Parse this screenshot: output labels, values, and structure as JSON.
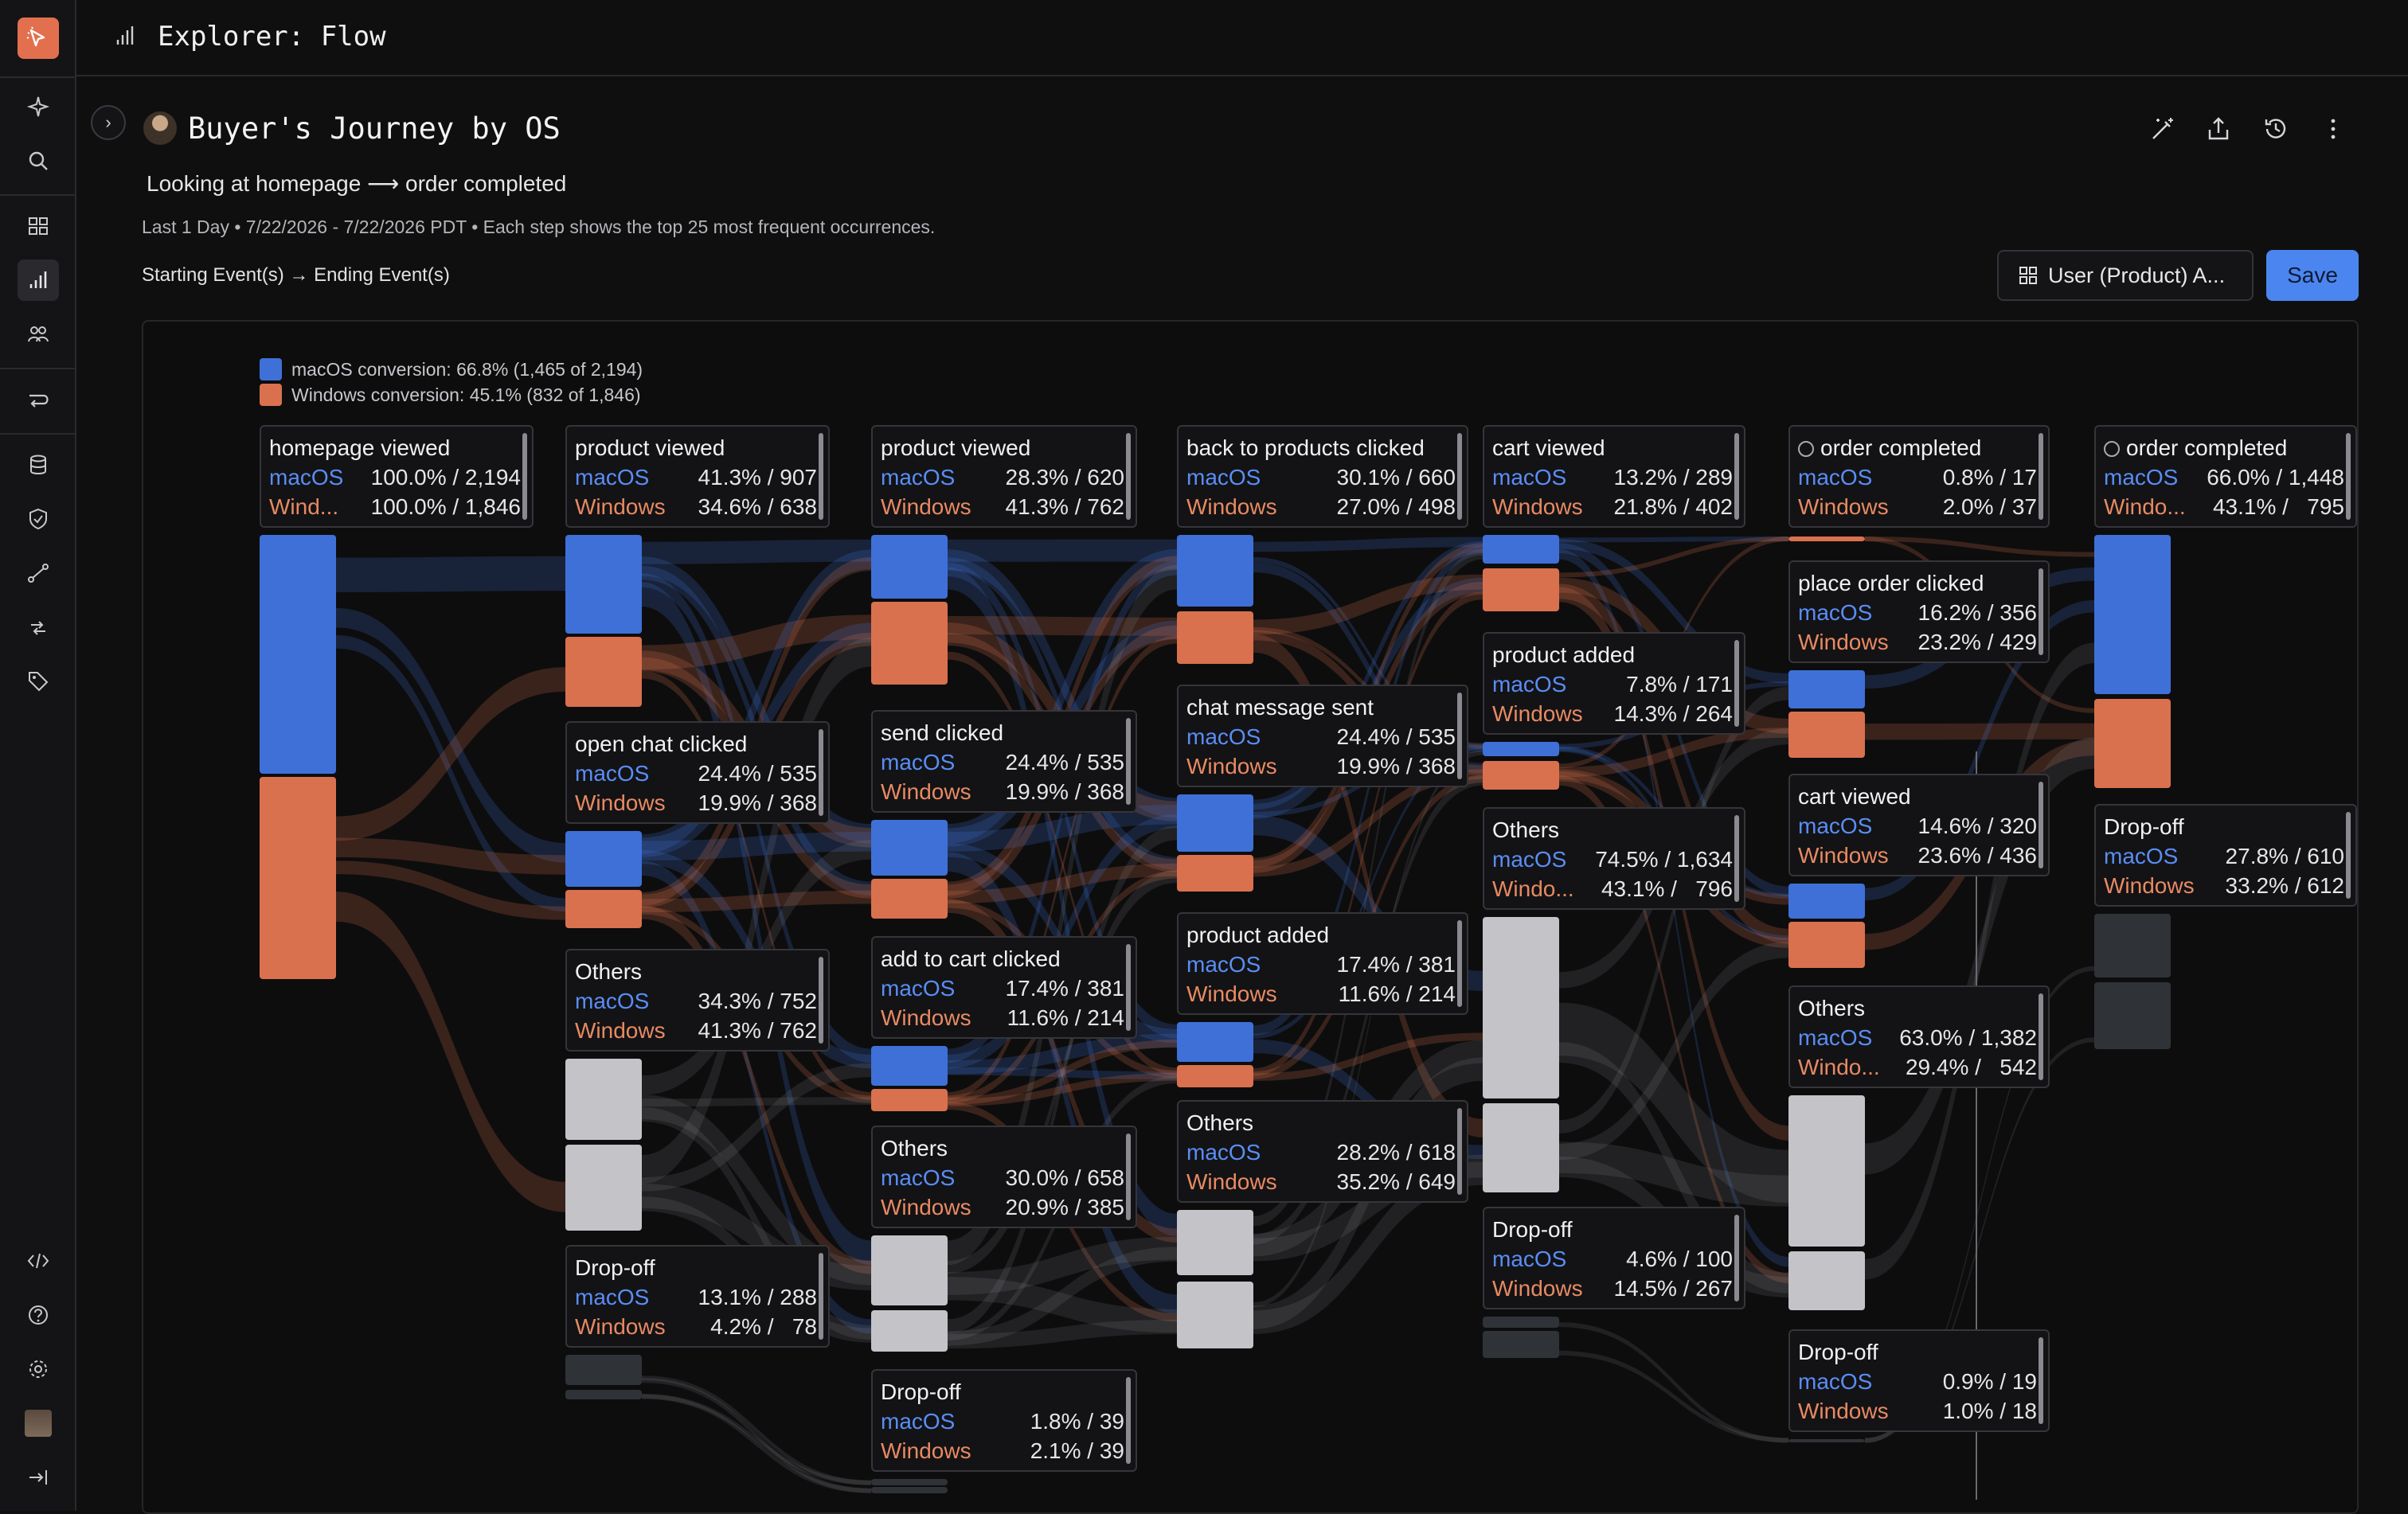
{
  "app": {
    "title": "Explorer: Flow"
  },
  "report": {
    "title": "Buyer's Journey by OS",
    "subtitle": "Looking at homepage ⟶ order completed",
    "meta": "Last 1 Day • 7/22/2026 - 7/22/2026 PDT • Each step shows the top 25 most frequent occurrences.",
    "breadcrumbs": "Starting Event(s) → Ending Event(s)",
    "user_button": "User (Product) A...",
    "save_button": "Save"
  },
  "colors": {
    "macos": "#3f70d8",
    "windows": "#d9714e",
    "others": "#c3c3c8",
    "dropoff": "#2f3338",
    "accent": "#4b86f0"
  },
  "icons": {
    "sidebar": [
      "logo-icon",
      "sparkle-icon",
      "search-icon",
      "grid-icon",
      "chart-icon",
      "people-icon",
      "route-icon",
      "database-icon",
      "shield-icon",
      "line-icon",
      "transfer-icon",
      "tag-icon",
      "code-icon",
      "help-icon",
      "settings-icon",
      "user-avatar",
      "collapse-icon"
    ],
    "header": [
      "magic-wand-icon",
      "share-icon",
      "history-icon",
      "more-icon"
    ]
  },
  "chart_data": {
    "type": "sankey",
    "legend": [
      {
        "key": "macos",
        "label": "macOS conversion: 66.8% (1,465 of 2,194)"
      },
      {
        "key": "windows",
        "label": "Windows conversion: 45.1% (832 of 1,846)"
      }
    ],
    "steps": [
      [
        {
          "name": "homepage viewed",
          "macos_label": "macOS",
          "macos_value": "100.0% / 2,194",
          "win_label": "Wind...",
          "win_value": "100.0% / 1,846"
        }
      ],
      [
        {
          "name": "product viewed",
          "macos_label": "macOS",
          "macos_value": "41.3% / 907",
          "win_label": "Windows",
          "win_value": "34.6% / 638"
        },
        {
          "name": "open chat clicked",
          "macos_label": "macOS",
          "macos_value": "24.4% / 535",
          "win_label": "Windows",
          "win_value": "19.9% / 368"
        },
        {
          "name": "Others",
          "macos_label": "macOS",
          "macos_value": "34.3% / 752",
          "win_label": "Windows",
          "win_value": "41.3% / 762"
        },
        {
          "name": "Drop-off",
          "macos_label": "macOS",
          "macos_value": "13.1% / 288",
          "win_label": "Windows",
          "win_value": "4.2% /   78"
        }
      ],
      [
        {
          "name": "product viewed",
          "macos_label": "macOS",
          "macos_value": "28.3% / 620",
          "win_label": "Windows",
          "win_value": "41.3% / 762"
        },
        {
          "name": "send clicked",
          "macos_label": "macOS",
          "macos_value": "24.4% / 535",
          "win_label": "Windows",
          "win_value": "19.9% / 368"
        },
        {
          "name": "add to cart clicked",
          "macos_label": "macOS",
          "macos_value": "17.4% / 381",
          "win_label": "Windows",
          "win_value": "11.6% / 214"
        },
        {
          "name": "Others",
          "macos_label": "macOS",
          "macos_value": "30.0% / 658",
          "win_label": "Windows",
          "win_value": "20.9% / 385"
        },
        {
          "name": "Drop-off",
          "macos_label": "macOS",
          "macos_value": "1.8% / 39",
          "win_label": "Windows",
          "win_value": "2.1% / 39"
        }
      ],
      [
        {
          "name": "back to products clicked",
          "macos_label": "macOS",
          "macos_value": "30.1% / 660",
          "win_label": "Windows",
          "win_value": "27.0% / 498"
        },
        {
          "name": "chat message sent",
          "macos_label": "macOS",
          "macos_value": "24.4% / 535",
          "win_label": "Windows",
          "win_value": "19.9% / 368"
        },
        {
          "name": "product added",
          "macos_label": "macOS",
          "macos_value": "17.4% / 381",
          "win_label": "Windows",
          "win_value": "11.6% / 214"
        },
        {
          "name": "Others",
          "macos_label": "macOS",
          "macos_value": "28.2% / 618",
          "win_label": "Windows",
          "win_value": "35.2% / 649"
        }
      ],
      [
        {
          "name": "cart viewed",
          "macos_label": "macOS",
          "macos_value": "13.2% / 289",
          "win_label": "Windows",
          "win_value": "21.8% / 402"
        },
        {
          "name": "product added",
          "macos_label": "macOS",
          "macos_value": "7.8% / 171",
          "win_label": "Windows",
          "win_value": "14.3% / 264"
        },
        {
          "name": "Others",
          "macos_label": "macOS",
          "macos_value": "74.5% / 1,634",
          "win_label": "Windo...",
          "win_value": "43.1% /   796"
        },
        {
          "name": "Drop-off",
          "macos_label": "macOS",
          "macos_value": "4.6% / 100",
          "win_label": "Windows",
          "win_value": "14.5% / 267"
        }
      ],
      [
        {
          "name": "order completed",
          "macos_label": "macOS",
          "macos_value": "0.8% / 17",
          "win_label": "Windows",
          "win_value": "2.0% / 37"
        },
        {
          "name": "place order clicked",
          "macos_label": "macOS",
          "macos_value": "16.2% / 356",
          "win_label": "Windows",
          "win_value": "23.2% / 429"
        },
        {
          "name": "cart viewed",
          "macos_label": "macOS",
          "macos_value": "14.6% / 320",
          "win_label": "Windows",
          "win_value": "23.6% / 436"
        },
        {
          "name": "Others",
          "macos_label": "macOS",
          "macos_value": "63.0% / 1,382",
          "win_label": "Windo...",
          "win_value": "29.4% /   542"
        },
        {
          "name": "Drop-off",
          "macos_label": "macOS",
          "macos_value": "0.9% / 19",
          "win_label": "Windows",
          "win_value": "1.0% / 18"
        }
      ],
      [
        {
          "name": "order completed",
          "macos_label": "macOS",
          "macos_value": "66.0% / 1,448",
          "win_label": "Windo...",
          "win_value": "43.1% /   795"
        },
        {
          "name": "Drop-off",
          "macos_label": "macOS",
          "macos_value": "27.8% / 610",
          "win_label": "Windows",
          "win_value": "33.2% / 612"
        }
      ]
    ]
  }
}
